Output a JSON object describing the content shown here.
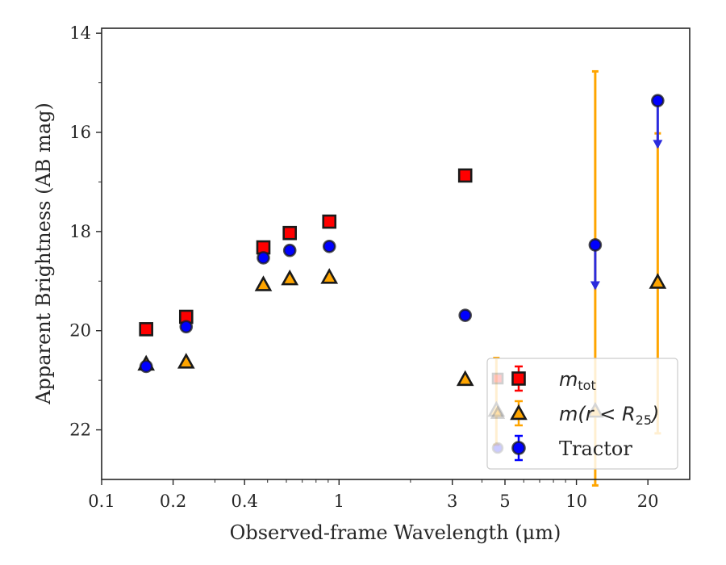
{
  "chart_data": {
    "type": "scatter",
    "title": "",
    "xlabel": "Observed-frame Wavelength (μm)",
    "ylabel": "Apparent Brightness (AB mag)",
    "xscale": "log",
    "xlim": [
      0.1,
      30
    ],
    "ylim": [
      23,
      13.9
    ],
    "y_inverted": true,
    "grid": false,
    "legend_position": "lower-right",
    "x_ticks": [
      {
        "value": 0.1,
        "label": "0.1"
      },
      {
        "value": 0.2,
        "label": "0.2"
      },
      {
        "value": 0.4,
        "label": "0.4"
      },
      {
        "value": 1,
        "label": "1"
      },
      {
        "value": 3,
        "label": "3"
      },
      {
        "value": 5,
        "label": "5"
      },
      {
        "value": 10,
        "label": "10"
      },
      {
        "value": 20,
        "label": "20"
      }
    ],
    "y_ticks": [
      {
        "value": 14,
        "label": "14"
      },
      {
        "value": 16,
        "label": "16"
      },
      {
        "value": 18,
        "label": "18"
      },
      {
        "value": 20,
        "label": "20"
      },
      {
        "value": 22,
        "label": "22"
      }
    ],
    "series": [
      {
        "name": "m_tot",
        "legend_main": "m",
        "legend_sub": "tot",
        "marker": "square",
        "color": "#ff0000",
        "edge": "#1a1a1a",
        "points": [
          {
            "x": 0.154,
            "y": 19.97,
            "err": 0.05
          },
          {
            "x": 0.227,
            "y": 19.72,
            "err": 0.05
          },
          {
            "x": 0.48,
            "y": 18.32,
            "err": 0.03
          },
          {
            "x": 0.62,
            "y": 18.03,
            "err": 0.03
          },
          {
            "x": 0.91,
            "y": 17.8,
            "err": 0.03
          },
          {
            "x": 3.4,
            "y": 16.87,
            "err": 0.05
          }
        ]
      },
      {
        "name": "m(r<R_25)",
        "legend_main": "m(r < R",
        "legend_sub": "25",
        "legend_tail": ")",
        "marker": "triangle",
        "color": "#ffa500",
        "edge": "#1a1a1a",
        "points": [
          {
            "x": 0.154,
            "y": 20.67,
            "err": 0.05
          },
          {
            "x": 0.227,
            "y": 20.63,
            "err": 0.05
          },
          {
            "x": 0.48,
            "y": 19.07,
            "err": 0.05
          },
          {
            "x": 0.62,
            "y": 18.95,
            "err": 0.05
          },
          {
            "x": 0.91,
            "y": 18.92,
            "err": 0.05
          },
          {
            "x": 3.4,
            "y": 20.98,
            "err": 0.08
          },
          {
            "x": 4.6,
            "y": 21.6,
            "err_low": 1.05,
            "err_high": 0.7
          },
          {
            "x": 12.0,
            "y": 21.62,
            "err_low": 6.85,
            "err_high": 1.5
          },
          {
            "x": 22.0,
            "y": 19.02,
            "err_low": 3.0,
            "err_high": 3.05
          }
        ]
      },
      {
        "name": "Tractor",
        "legend_main": "Tractor",
        "marker": "circle",
        "color": "#0000ff",
        "edge": "#1a1a1a",
        "points": [
          {
            "x": 0.154,
            "y": 20.72,
            "err": 0.05
          },
          {
            "x": 0.227,
            "y": 19.92,
            "err": 0.05
          },
          {
            "x": 0.48,
            "y": 18.53,
            "err": 0.05
          },
          {
            "x": 0.62,
            "y": 18.38,
            "err": 0.05
          },
          {
            "x": 0.91,
            "y": 18.3,
            "err": 0.05
          },
          {
            "x": 3.4,
            "y": 19.69,
            "err": 0.1
          },
          {
            "x": 12.0,
            "y": 18.27,
            "upper_limit": true,
            "arrow_to": 19.15
          },
          {
            "x": 22.0,
            "y": 15.36,
            "upper_limit": true,
            "arrow_to": 16.3
          }
        ]
      }
    ]
  }
}
